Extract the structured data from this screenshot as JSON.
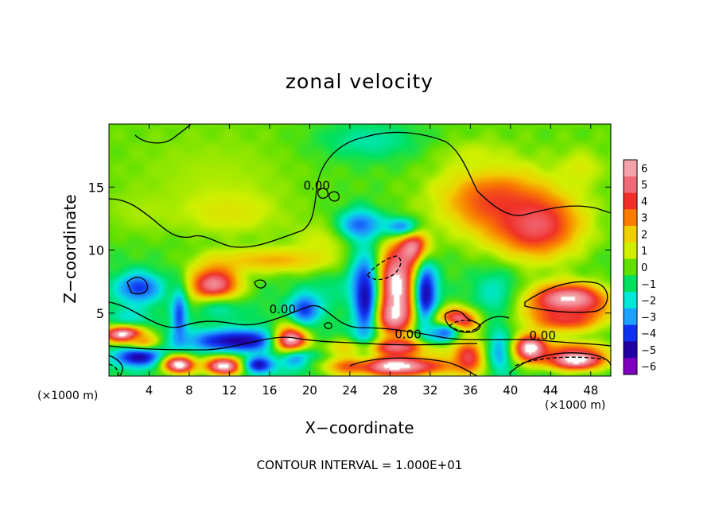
{
  "chart_data": {
    "type": "heatmap",
    "title": "zonal velocity",
    "xlabel": "X−coordinate",
    "ylabel": "Z−coordinate",
    "x_unit_left": "(×1000 m)",
    "x_unit_right": "(×1000 m)",
    "footer": "CONTOUR INTERVAL = 1.000E+01",
    "xlim": [
      0,
      50
    ],
    "ylim": [
      0,
      20
    ],
    "x_ticks": [
      4,
      8,
      12,
      16,
      20,
      24,
      28,
      32,
      36,
      40,
      44,
      48
    ],
    "y_ticks": [
      5,
      10,
      15
    ],
    "x_tick_labels": [
      "4",
      "8",
      "12",
      "16",
      "20",
      "24",
      "28",
      "32",
      "36",
      "40",
      "44",
      "48"
    ],
    "y_tick_labels": [
      "5",
      "10",
      "15"
    ],
    "colorbar": {
      "min": -6,
      "max": 6,
      "levels": [
        6,
        5,
        4,
        3,
        2,
        1,
        0,
        -1,
        -2,
        -3,
        -4,
        -5,
        -6
      ],
      "labels": [
        "6",
        "5",
        "4",
        "3",
        "2",
        "1",
        "0",
        "−1",
        "−2",
        "−3",
        "−4",
        "−5",
        "−6"
      ],
      "colors": [
        "#f4a3a8",
        "#f06a78",
        "#f03028",
        "#fa7d00",
        "#f0d000",
        "#d0f000",
        "#5fe000",
        "#00e060",
        "#00e8d8",
        "#1ea0ff",
        "#1030f0",
        "#2000a0",
        "#8000c0"
      ]
    },
    "contour_labels": [
      {
        "text": "0.00",
        "x": 17.3,
        "y": 5.0
      },
      {
        "text": "0.00",
        "x": 29.8,
        "y": 3.0
      },
      {
        "text": "0.00",
        "x": 43.2,
        "y": 2.9
      },
      {
        "text": "0.00",
        "x": 20.7,
        "y": 14.8
      }
    ],
    "blobs": [
      {
        "x": 10.3,
        "y": 16.2,
        "rx": 11,
        "ry": 4,
        "v": 0.6
      },
      {
        "x": 26,
        "y": 18.7,
        "rx": 7,
        "ry": 2.2,
        "v": -1.6
      },
      {
        "x": 3,
        "y": 13,
        "rx": 5,
        "ry": 2.5,
        "v": 0.6
      },
      {
        "x": 12,
        "y": 13,
        "rx": 7,
        "ry": 2.5,
        "v": 1.4
      },
      {
        "x": 22,
        "y": 11,
        "rx": 5,
        "ry": 2,
        "v": 1.2
      },
      {
        "x": 38,
        "y": 14,
        "rx": 7,
        "ry": 3.5,
        "v": 3.5
      },
      {
        "x": 42.5,
        "y": 12,
        "rx": 6,
        "ry": 3.5,
        "v": 4.8
      },
      {
        "x": 47,
        "y": 16.5,
        "rx": 3,
        "ry": 2,
        "v": 1.2
      },
      {
        "x": 36.5,
        "y": 17.5,
        "rx": 4,
        "ry": 1.5,
        "v": 1.0
      },
      {
        "x": 38.5,
        "y": 6.5,
        "rx": 2.8,
        "ry": 2.5,
        "v": -2.0
      },
      {
        "x": 22,
        "y": 6.5,
        "rx": 3,
        "ry": 2.5,
        "v": -1.2
      },
      {
        "x": 16.5,
        "y": 9.2,
        "rx": 8,
        "ry": 1.3,
        "v": 2.4
      },
      {
        "x": 10.5,
        "y": 6.8,
        "rx": 3.2,
        "ry": 2.3,
        "v": 7
      },
      {
        "x": 11,
        "y": 5.2,
        "rx": 5,
        "ry": 1.8,
        "v": -1.5
      },
      {
        "x": 3,
        "y": 7,
        "rx": 3,
        "ry": 1.6,
        "v": -4
      },
      {
        "x": 2,
        "y": 4,
        "rx": 2.5,
        "ry": 2,
        "v": -2.5
      },
      {
        "x": 1.5,
        "y": 3.3,
        "rx": 2.8,
        "ry": 0.9,
        "v": 7
      },
      {
        "x": 3,
        "y": 1.5,
        "rx": 3,
        "ry": 1,
        "v": -5
      },
      {
        "x": 3.5,
        "y": 2.8,
        "rx": 2,
        "ry": 0.7,
        "v": 3
      },
      {
        "x": 7,
        "y": 4.8,
        "rx": 1,
        "ry": 2.8,
        "v": -3.8
      },
      {
        "x": 13,
        "y": 2.8,
        "rx": 7,
        "ry": 1.2,
        "v": -5
      },
      {
        "x": 7,
        "y": 0.9,
        "rx": 2,
        "ry": 0.9,
        "v": 7
      },
      {
        "x": 11.5,
        "y": 0.8,
        "rx": 2.5,
        "ry": 0.9,
        "v": 7
      },
      {
        "x": 15,
        "y": 0.9,
        "rx": 2,
        "ry": 0.9,
        "v": -5
      },
      {
        "x": 18.2,
        "y": 2.8,
        "rx": 2.2,
        "ry": 1.6,
        "v": 7
      },
      {
        "x": 19.5,
        "y": 5.3,
        "rx": 2,
        "ry": 1.6,
        "v": -4
      },
      {
        "x": 19,
        "y": 1.2,
        "rx": 3,
        "ry": 1.2,
        "v": -4
      },
      {
        "x": 21,
        "y": 1.2,
        "rx": 2,
        "ry": 1,
        "v": -2.5
      },
      {
        "x": 28,
        "y": 2.3,
        "rx": 7,
        "ry": 0.9,
        "v": 5
      },
      {
        "x": 28,
        "y": 0.8,
        "rx": 8,
        "ry": 1.1,
        "v": 7
      },
      {
        "x": 28.5,
        "y": 7.2,
        "rx": 3,
        "ry": 4,
        "v": 7
      },
      {
        "x": 27.7,
        "y": 5,
        "rx": 3.5,
        "ry": 2,
        "v": 7
      },
      {
        "x": 30.5,
        "y": 10,
        "rx": 2,
        "ry": 2,
        "v": 7
      },
      {
        "x": 25.5,
        "y": 6.2,
        "rx": 2,
        "ry": 5.4,
        "v": -4.8
      },
      {
        "x": 31.6,
        "y": 6.5,
        "rx": 1.6,
        "ry": 4,
        "v": -4.8
      },
      {
        "x": 25,
        "y": 12,
        "rx": 3,
        "ry": 1.6,
        "v": -3.5
      },
      {
        "x": 29,
        "y": 11.9,
        "rx": 2.5,
        "ry": 1,
        "v": -3
      },
      {
        "x": 34.6,
        "y": 4.3,
        "rx": 2.5,
        "ry": 1.3,
        "v": 7
      },
      {
        "x": 33.5,
        "y": 3.4,
        "rx": 2.5,
        "ry": 1.2,
        "v": -3.5
      },
      {
        "x": 35.8,
        "y": 1.5,
        "rx": 2,
        "ry": 1.8,
        "v": 4.5
      },
      {
        "x": 39,
        "y": 2,
        "rx": 1.5,
        "ry": 2.3,
        "v": -3
      },
      {
        "x": 45.8,
        "y": 6,
        "rx": 4.8,
        "ry": 1.7,
        "v": 7
      },
      {
        "x": 45.5,
        "y": 4.6,
        "rx": 5,
        "ry": 1.5,
        "v": 4.2
      },
      {
        "x": 46,
        "y": 2.3,
        "rx": 5,
        "ry": 0.9,
        "v": 1.8
      },
      {
        "x": 46.5,
        "y": 1.3,
        "rx": 4,
        "ry": 1.1,
        "v": 7
      },
      {
        "x": 42,
        "y": 2.2,
        "rx": 2,
        "ry": 1.4,
        "v": 7
      }
    ]
  }
}
